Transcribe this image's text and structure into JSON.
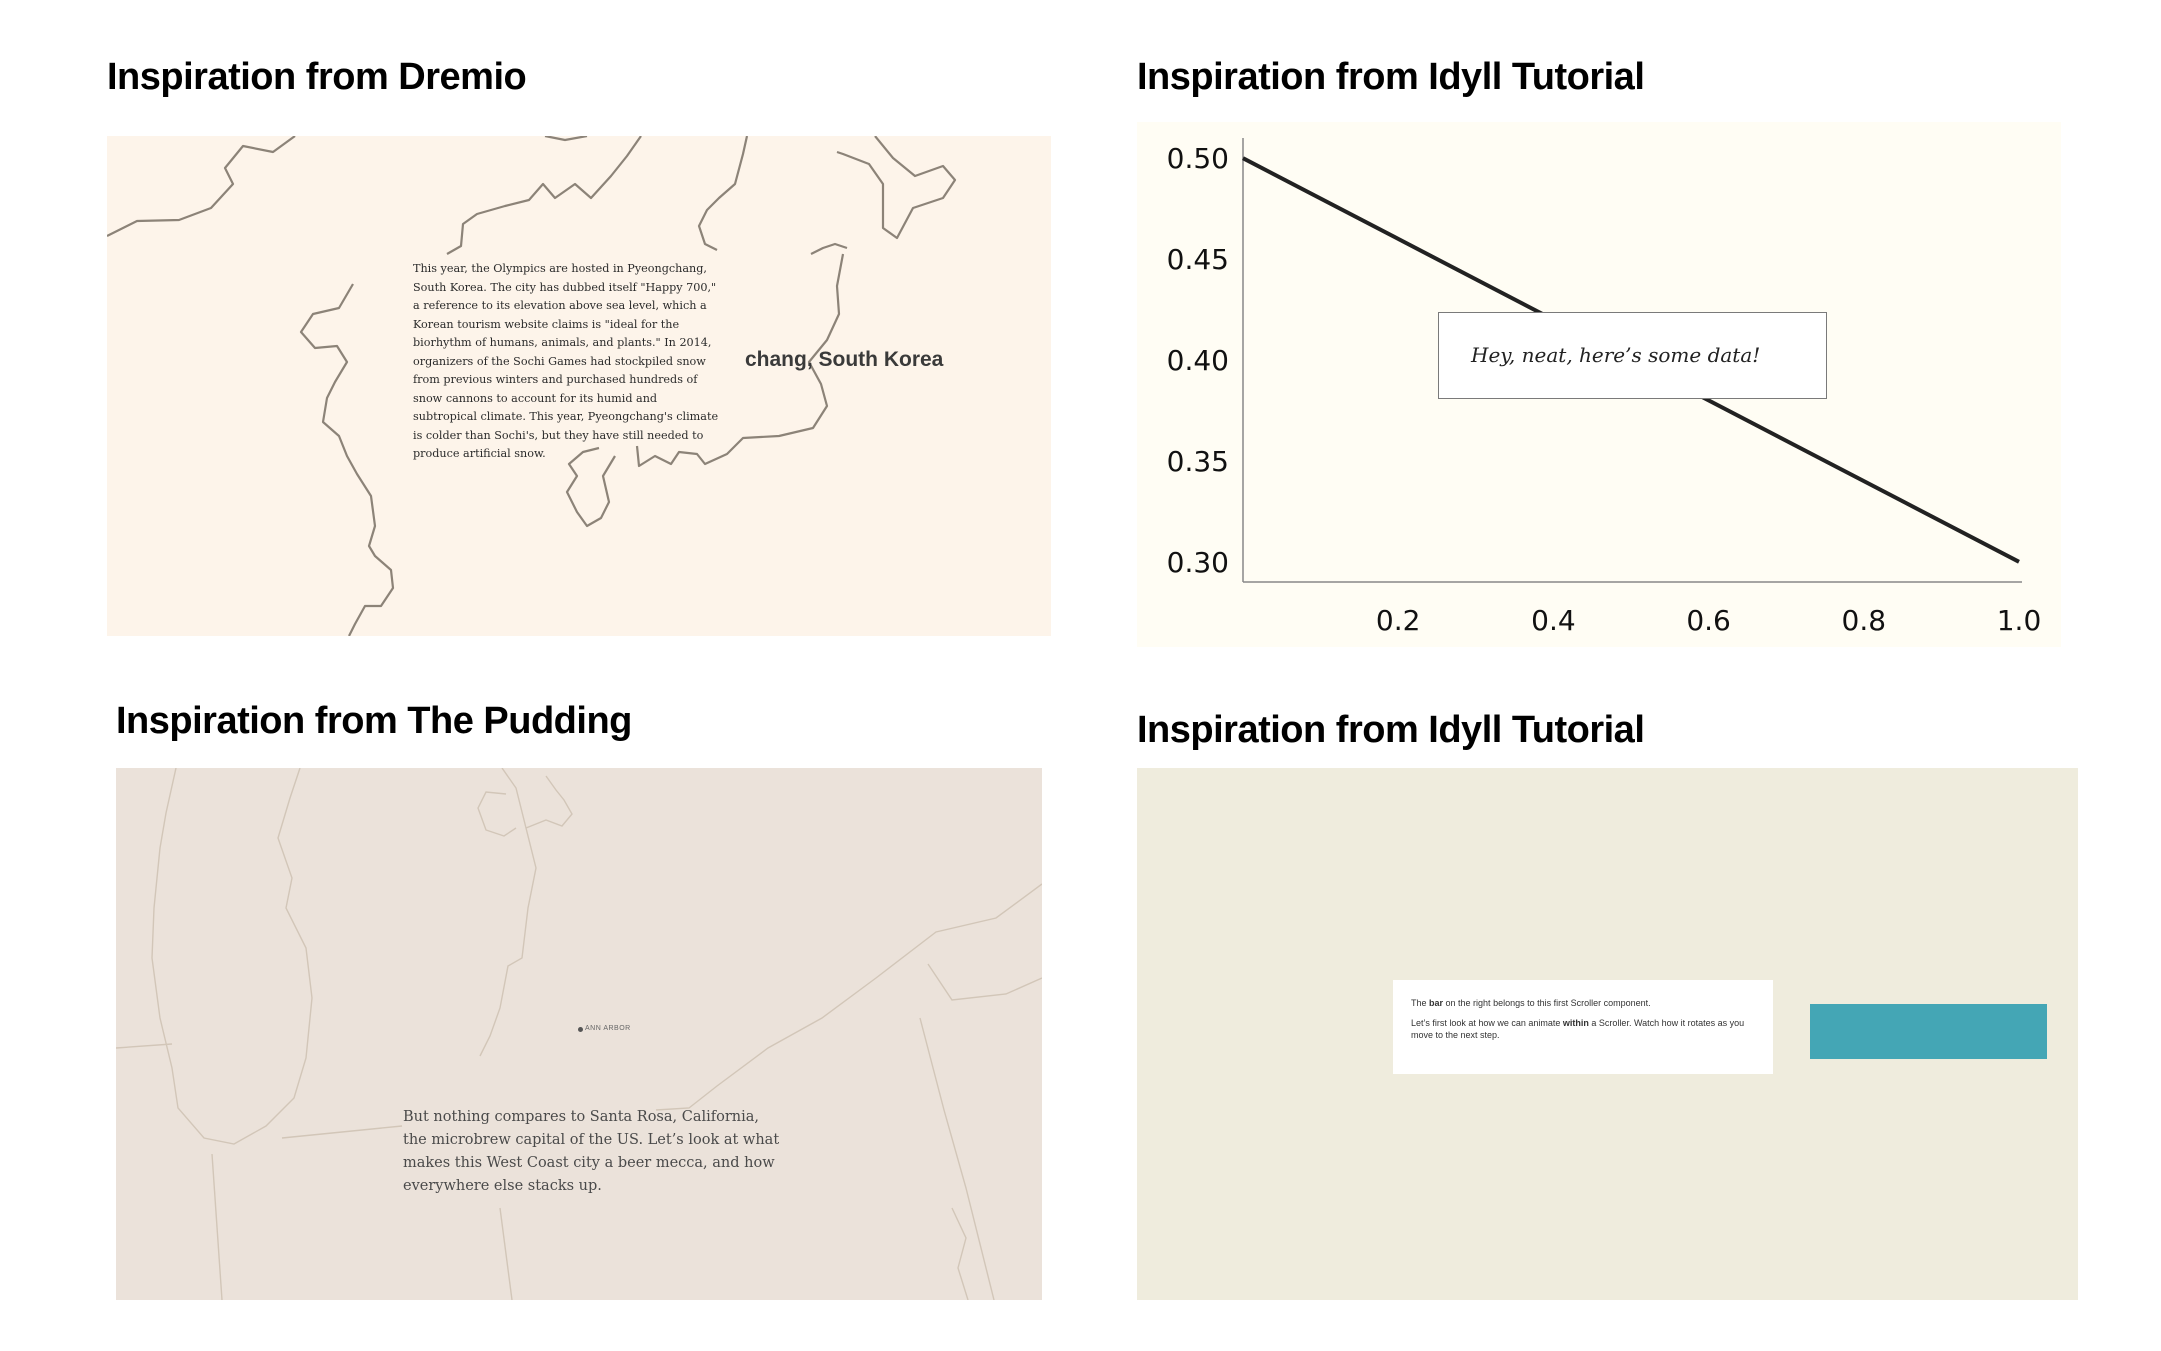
{
  "panels": [
    {
      "title": "Inspiration from Dremio",
      "story_text": "This year, the Olympics are hosted in Pyeongchang, South Korea. The city has dubbed itself \"Happy 700,\" a reference to its elevation above sea level, which a Korean tourism website claims is \"ideal for the biorhythm of humans, animals, and plants.\" In 2014, organizers of the Sochi Games had stockpiled snow from previous winters and purchased hundreds of snow cannons to account for its humid and subtropical climate. This year, Pyeongchang's climate is colder than Sochi's, but they have still needed to produce artificial snow.",
      "map_label": "chang, South Korea",
      "colors": {
        "background": "#fdf4ea",
        "coastline": "#8c8378"
      }
    },
    {
      "title": "Inspiration from Idyll Tutorial",
      "tooltip_text": "Hey, neat, here’s some data!",
      "colors": {
        "background": "#fffdf4",
        "line": "#222222"
      }
    },
    {
      "title": "Inspiration from The Pudding",
      "city_label": "ANN ARBOR",
      "story_text": "But nothing compares to Santa Rosa, California, the microbrew capital of the US. Let’s look at what makes this West Coast city a beer mecca, and how everywhere else stacks up.",
      "colors": {
        "background": "#ebe2da",
        "boundary": "#d2c6b8"
      }
    },
    {
      "title": "Inspiration from Idyll Tutorial",
      "step_card": {
        "line1_before": "The ",
        "line1_bold": "bar",
        "line1_after": " on the right belongs to this first Scroller component.",
        "line2_before": "Let’s first look at how we can animate ",
        "line2_bold": "within",
        "line2_after": " a Scroller. Watch how it rotates as you move to the next step."
      },
      "colors": {
        "background": "#efecdd",
        "bar": "#44a6b5"
      }
    }
  ],
  "chart_data": {
    "type": "line",
    "title": "",
    "xlabel": "",
    "ylabel": "",
    "x_ticks": [
      "0.2",
      "0.4",
      "0.6",
      "0.8",
      "1.0"
    ],
    "y_ticks": [
      "0.50",
      "0.45",
      "0.40",
      "0.35",
      "0.30"
    ],
    "xlim": [
      0,
      1.0
    ],
    "ylim": [
      0.29,
      0.51
    ],
    "x": [
      0.0,
      1.0
    ],
    "y": [
      0.5,
      0.3
    ],
    "grid": false
  }
}
